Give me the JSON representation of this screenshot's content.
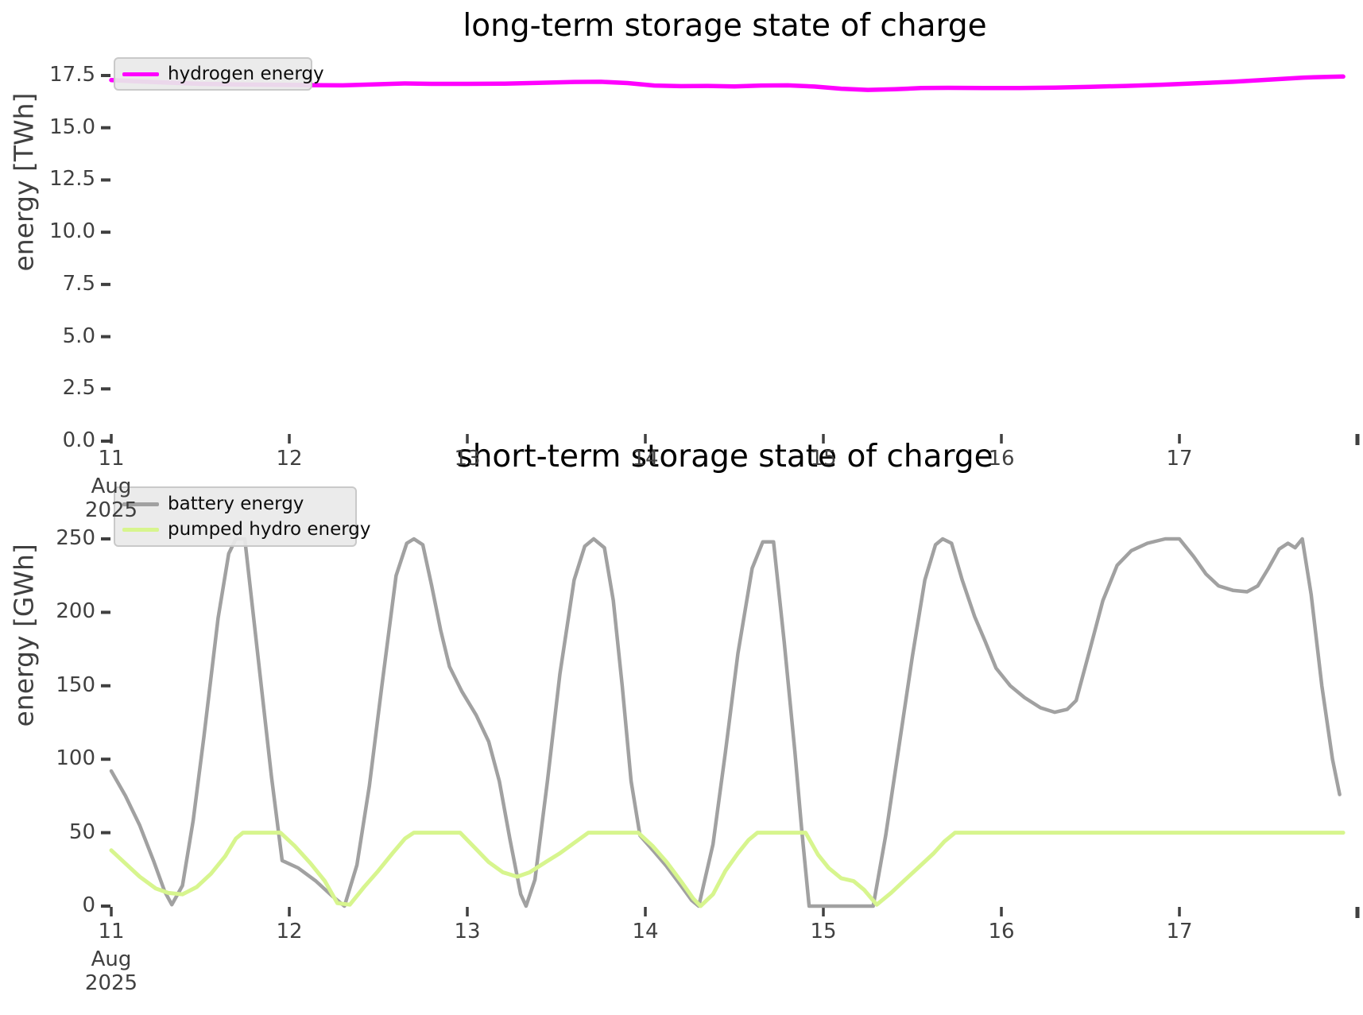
{
  "figure": {
    "background": "#ffffff",
    "text_color": "#404040",
    "tick_color": "#404040"
  },
  "chart_data": [
    {
      "type": "line",
      "title": "long-term storage state of charge",
      "ylabel": "energy [TWh]",
      "xlabel": "",
      "xlim": [
        11,
        18
      ],
      "ylim": [
        0,
        18.8
      ],
      "grid": false,
      "legend_position": "upper-left",
      "yticks": [
        {
          "v": 0,
          "label": "0.0"
        },
        {
          "v": 2.5,
          "label": "2.5"
        },
        {
          "v": 5,
          "label": "5.0"
        },
        {
          "v": 7.5,
          "label": "7.5"
        },
        {
          "v": 10,
          "label": "10.0"
        },
        {
          "v": 12.5,
          "label": "12.5"
        },
        {
          "v": 15,
          "label": "15.0"
        },
        {
          "v": 17.5,
          "label": "17.5"
        }
      ],
      "xticks": [
        {
          "v": 11,
          "label": "11",
          "sublabels": [
            "Aug",
            "2025"
          ]
        },
        {
          "v": 12,
          "label": "12"
        },
        {
          "v": 13,
          "label": "13"
        },
        {
          "v": 14,
          "label": "14"
        },
        {
          "v": 15,
          "label": "15"
        },
        {
          "v": 16,
          "label": "16"
        },
        {
          "v": 17,
          "label": "17"
        },
        {
          "v": 18,
          "label": "",
          "edge": true
        }
      ],
      "series": [
        {
          "name": "hydrogen energy",
          "color": "#ff00ff",
          "width": 5.5,
          "points": [
            [
              11.0,
              17.28
            ],
            [
              11.15,
              17.22
            ],
            [
              11.3,
              17.17
            ],
            [
              11.5,
              17.1
            ],
            [
              11.7,
              17.07
            ],
            [
              11.9,
              17.06
            ],
            [
              12.1,
              17.04
            ],
            [
              12.3,
              17.03
            ],
            [
              12.5,
              17.08
            ],
            [
              12.65,
              17.12
            ],
            [
              12.8,
              17.1
            ],
            [
              13.0,
              17.1
            ],
            [
              13.2,
              17.11
            ],
            [
              13.4,
              17.15
            ],
            [
              13.6,
              17.19
            ],
            [
              13.75,
              17.2
            ],
            [
              13.9,
              17.14
            ],
            [
              14.05,
              17.02
            ],
            [
              14.2,
              16.99
            ],
            [
              14.35,
              17.0
            ],
            [
              14.5,
              16.98
            ],
            [
              14.65,
              17.02
            ],
            [
              14.8,
              17.03
            ],
            [
              14.95,
              16.97
            ],
            [
              15.1,
              16.87
            ],
            [
              15.25,
              16.81
            ],
            [
              15.4,
              16.84
            ],
            [
              15.55,
              16.9
            ],
            [
              15.7,
              16.91
            ],
            [
              15.9,
              16.9
            ],
            [
              16.1,
              16.9
            ],
            [
              16.3,
              16.92
            ],
            [
              16.5,
              16.96
            ],
            [
              16.7,
              17.0
            ],
            [
              16.9,
              17.06
            ],
            [
              17.1,
              17.13
            ],
            [
              17.3,
              17.2
            ],
            [
              17.5,
              17.3
            ],
            [
              17.7,
              17.4
            ],
            [
              17.85,
              17.44
            ],
            [
              17.92,
              17.45
            ]
          ]
        }
      ]
    },
    {
      "type": "line",
      "title": "short-term storage state of charge",
      "ylabel": "energy [GWh]",
      "xlabel": "",
      "xlim": [
        11,
        18
      ],
      "ylim": [
        0,
        268
      ],
      "grid": false,
      "legend_position": "upper-left",
      "yticks": [
        {
          "v": 0,
          "label": "0"
        },
        {
          "v": 50,
          "label": "50"
        },
        {
          "v": 100,
          "label": "100"
        },
        {
          "v": 150,
          "label": "150"
        },
        {
          "v": 200,
          "label": "200"
        },
        {
          "v": 250,
          "label": "250"
        }
      ],
      "xticks": [
        {
          "v": 11,
          "label": "11",
          "sublabels": [
            "Aug",
            "2025"
          ]
        },
        {
          "v": 12,
          "label": "12"
        },
        {
          "v": 13,
          "label": "13"
        },
        {
          "v": 14,
          "label": "14"
        },
        {
          "v": 15,
          "label": "15"
        },
        {
          "v": 16,
          "label": "16"
        },
        {
          "v": 17,
          "label": "17"
        },
        {
          "v": 18,
          "label": "",
          "edge": true
        }
      ],
      "series": [
        {
          "name": "battery energy",
          "color": "#a1a1a1",
          "width": 4.5,
          "points": [
            [
              11.0,
              92
            ],
            [
              11.08,
              75
            ],
            [
              11.16,
              55
            ],
            [
              11.24,
              30
            ],
            [
              11.3,
              10
            ],
            [
              11.34,
              1
            ],
            [
              11.4,
              14
            ],
            [
              11.46,
              58
            ],
            [
              11.52,
              115
            ],
            [
              11.6,
              196
            ],
            [
              11.66,
              240
            ],
            [
              11.7,
              250
            ],
            [
              11.75,
              250
            ],
            [
              11.8,
              196
            ],
            [
              11.85,
              142
            ],
            [
              11.9,
              88
            ],
            [
              11.96,
              31
            ],
            [
              12.05,
              26
            ],
            [
              12.15,
              17
            ],
            [
              12.24,
              7
            ],
            [
              12.31,
              0
            ],
            [
              12.38,
              28
            ],
            [
              12.45,
              82
            ],
            [
              12.52,
              150
            ],
            [
              12.6,
              225
            ],
            [
              12.66,
              247
            ],
            [
              12.7,
              250
            ],
            [
              12.75,
              246
            ],
            [
              12.8,
              218
            ],
            [
              12.85,
              188
            ],
            [
              12.9,
              163
            ],
            [
              12.97,
              146
            ],
            [
              13.05,
              130
            ],
            [
              13.12,
              112
            ],
            [
              13.18,
              85
            ],
            [
              13.24,
              45
            ],
            [
              13.3,
              8
            ],
            [
              13.33,
              0
            ],
            [
              13.38,
              18
            ],
            [
              13.45,
              85
            ],
            [
              13.52,
              158
            ],
            [
              13.6,
              222
            ],
            [
              13.66,
              245
            ],
            [
              13.71,
              250
            ],
            [
              13.77,
              244
            ],
            [
              13.82,
              208
            ],
            [
              13.87,
              150
            ],
            [
              13.92,
              85
            ],
            [
              13.97,
              48
            ],
            [
              14.05,
              37
            ],
            [
              14.12,
              27
            ],
            [
              14.2,
              14
            ],
            [
              14.26,
              4
            ],
            [
              14.3,
              0
            ],
            [
              14.38,
              42
            ],
            [
              14.45,
              105
            ],
            [
              14.52,
              172
            ],
            [
              14.6,
              230
            ],
            [
              14.66,
              248
            ],
            [
              14.72,
              248
            ],
            [
              14.78,
              180
            ],
            [
              14.84,
              105
            ],
            [
              14.88,
              50
            ],
            [
              14.92,
              0
            ],
            [
              15.28,
              0
            ],
            [
              15.35,
              48
            ],
            [
              15.42,
              105
            ],
            [
              15.5,
              170
            ],
            [
              15.57,
              222
            ],
            [
              15.63,
              246
            ],
            [
              15.67,
              250
            ],
            [
              15.72,
              247
            ],
            [
              15.78,
              222
            ],
            [
              15.85,
              197
            ],
            [
              15.91,
              180
            ],
            [
              15.97,
              162
            ],
            [
              16.05,
              150
            ],
            [
              16.13,
              142
            ],
            [
              16.22,
              135
            ],
            [
              16.3,
              132
            ],
            [
              16.37,
              134
            ],
            [
              16.42,
              140
            ],
            [
              16.5,
              176
            ],
            [
              16.57,
              208
            ],
            [
              16.65,
              232
            ],
            [
              16.73,
              242
            ],
            [
              16.82,
              247
            ],
            [
              16.92,
              250
            ],
            [
              17.0,
              250
            ],
            [
              17.08,
              238
            ],
            [
              17.15,
              226
            ],
            [
              17.22,
              218
            ],
            [
              17.3,
              215
            ],
            [
              17.38,
              214
            ],
            [
              17.44,
              218
            ],
            [
              17.5,
              230
            ],
            [
              17.56,
              243
            ],
            [
              17.61,
              247
            ],
            [
              17.65,
              244
            ],
            [
              17.69,
              250
            ],
            [
              17.74,
              212
            ],
            [
              17.8,
              150
            ],
            [
              17.86,
              100
            ],
            [
              17.9,
              76
            ]
          ]
        },
        {
          "name": "pumped hydro energy",
          "color": "#d7f58e",
          "width": 5,
          "points": [
            [
              11.0,
              38
            ],
            [
              11.08,
              29
            ],
            [
              11.16,
              20
            ],
            [
              11.25,
              12
            ],
            [
              11.32,
              9
            ],
            [
              11.4,
              8
            ],
            [
              11.48,
              13
            ],
            [
              11.56,
              22
            ],
            [
              11.64,
              34
            ],
            [
              11.7,
              46
            ],
            [
              11.74,
              50
            ],
            [
              11.95,
              50
            ],
            [
              12.03,
              41
            ],
            [
              12.12,
              29
            ],
            [
              12.2,
              17
            ],
            [
              12.27,
              2
            ],
            [
              12.34,
              1
            ],
            [
              12.42,
              13
            ],
            [
              12.5,
              24
            ],
            [
              12.58,
              36
            ],
            [
              12.65,
              46
            ],
            [
              12.7,
              50
            ],
            [
              12.96,
              50
            ],
            [
              13.04,
              40
            ],
            [
              13.12,
              30
            ],
            [
              13.2,
              23
            ],
            [
              13.28,
              20
            ],
            [
              13.35,
              23
            ],
            [
              13.44,
              30
            ],
            [
              13.52,
              36
            ],
            [
              13.6,
              43
            ],
            [
              13.68,
              50
            ],
            [
              13.96,
              50
            ],
            [
              14.04,
              41
            ],
            [
              14.12,
              30
            ],
            [
              14.2,
              17
            ],
            [
              14.27,
              5
            ],
            [
              14.31,
              0
            ],
            [
              14.38,
              8
            ],
            [
              14.45,
              24
            ],
            [
              14.52,
              36
            ],
            [
              14.58,
              45
            ],
            [
              14.63,
              50
            ],
            [
              14.9,
              50
            ],
            [
              14.97,
              35
            ],
            [
              15.03,
              26
            ],
            [
              15.1,
              19
            ],
            [
              15.17,
              17
            ],
            [
              15.23,
              11
            ],
            [
              15.3,
              1
            ],
            [
              15.38,
              9
            ],
            [
              15.46,
              18
            ],
            [
              15.54,
              27
            ],
            [
              15.62,
              36
            ],
            [
              15.68,
              44
            ],
            [
              15.74,
              50
            ],
            [
              17.92,
              50
            ]
          ]
        }
      ]
    }
  ]
}
